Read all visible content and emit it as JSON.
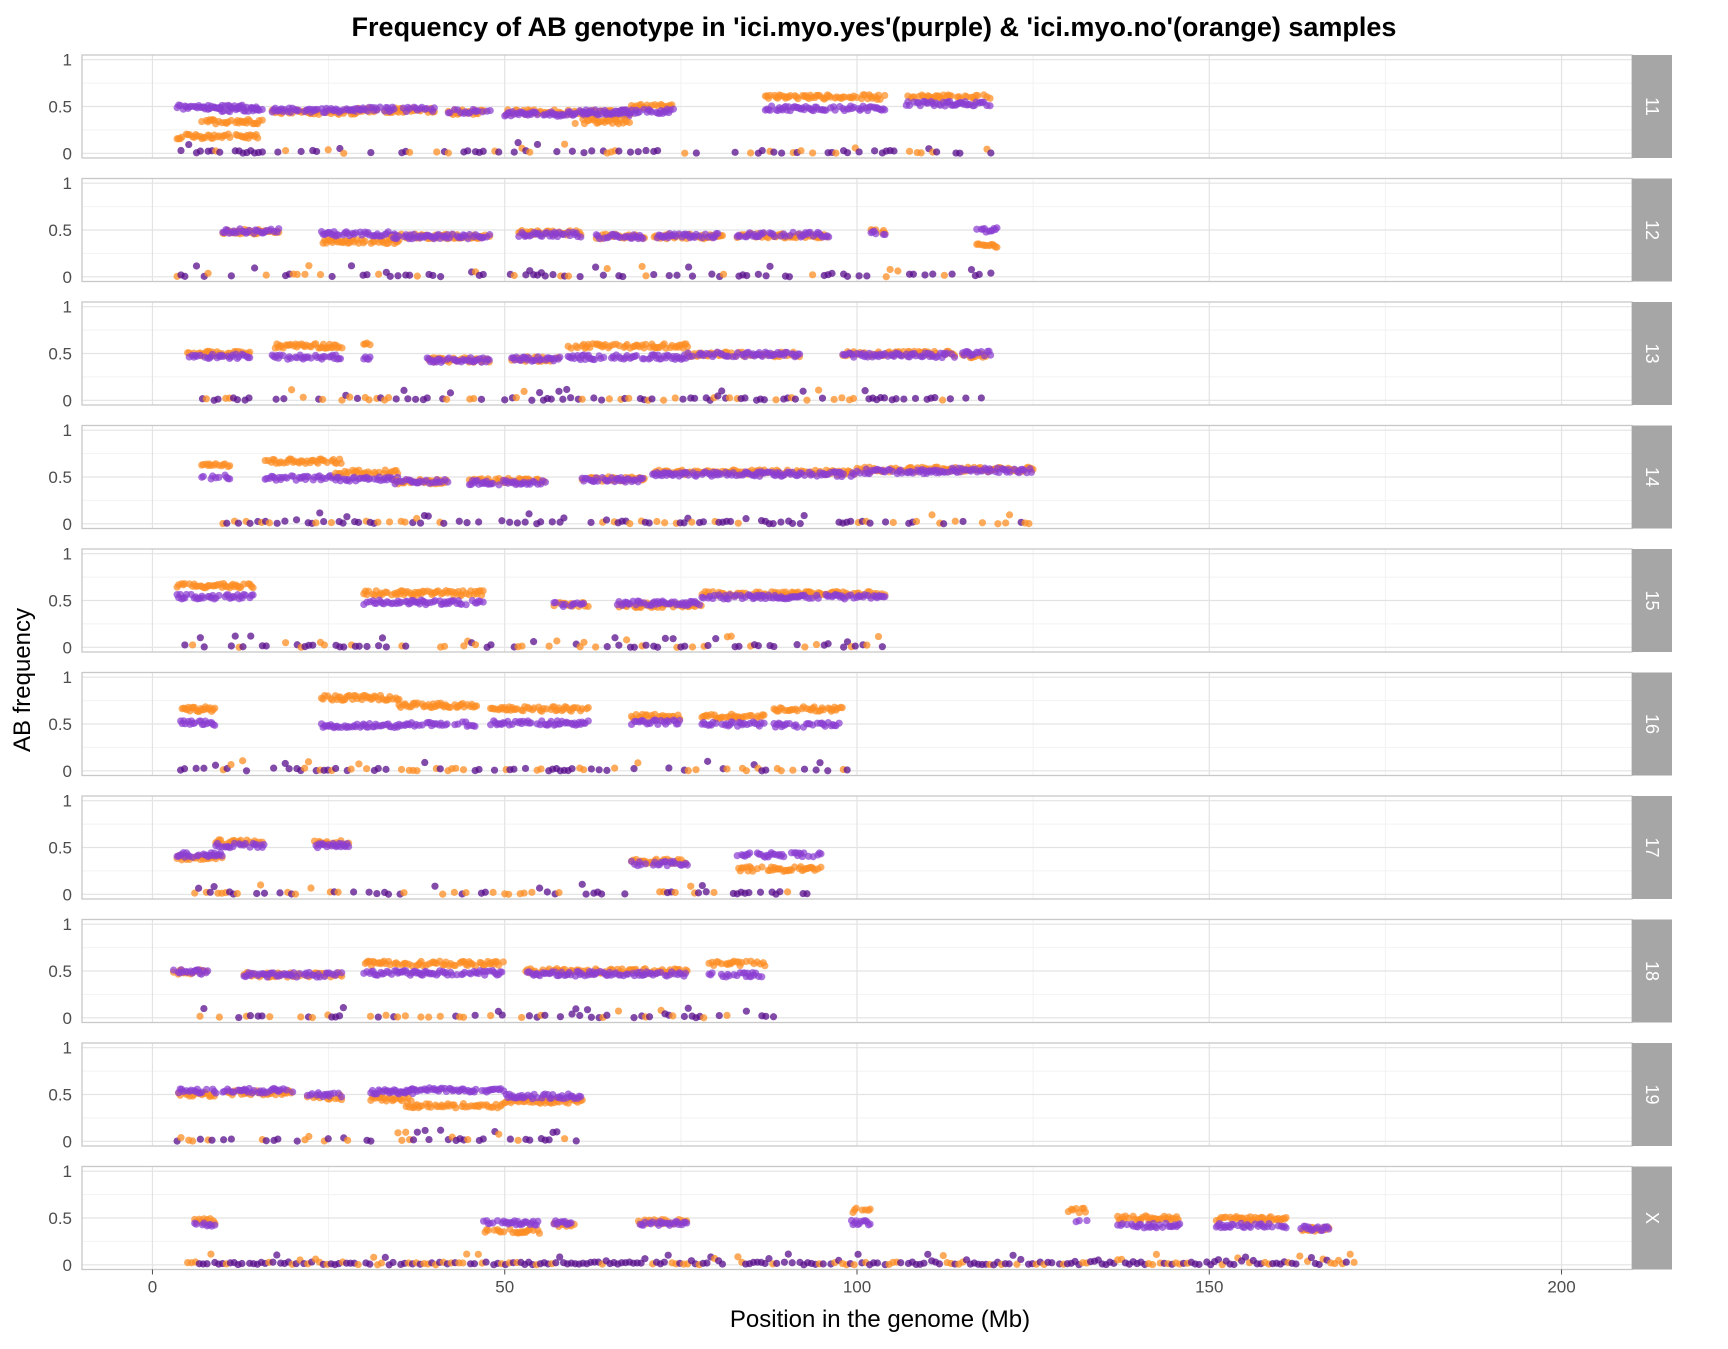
{
  "chart_data": {
    "type": "scatter",
    "title": "Frequency of AB genotype in 'ici.myo.yes'(purple) & 'ici.myo.no'(orange) samples",
    "xlabel": "Position in the genome (Mb)",
    "ylabel": "AB frequency",
    "xlim": [
      -10,
      210
    ],
    "ylim": [
      -0.05,
      1.05
    ],
    "x_ticks": [
      0,
      50,
      100,
      150,
      200
    ],
    "x_tick_labels": [
      "0",
      "50",
      "100",
      "150",
      "200"
    ],
    "y_ticks": [
      0,
      0.5,
      1
    ],
    "y_tick_labels": [
      "0",
      "0.5",
      "1"
    ],
    "grid": true,
    "facet_by": "chromosome",
    "strip_position": "right",
    "colors": {
      "ici.myo.yes": "#8a3fd1",
      "ici.myo.no": "#fd8d24",
      "low_points": "#5a0f8c",
      "panel_border": "#c8c8c8",
      "grid_major": "#e3e3e3",
      "grid_minor": "#f2f2f2",
      "strip": "#a6a6a6"
    },
    "series": [
      {
        "name": "ici.myo.yes",
        "color": "#8a3fd1"
      },
      {
        "name": "ici.myo.no",
        "color": "#fd8d24"
      }
    ],
    "panels": [
      {
        "label": "11",
        "start": 3.5,
        "end": 121,
        "segments": [
          {
            "x": [
              3.5,
              15
            ],
            "yes": 0.49,
            "no": 0.18
          },
          {
            "x": [
              7,
              16
            ],
            "yes": 0.47,
            "no": 0.34
          },
          {
            "x": [
              17,
              29
            ],
            "yes": 0.46,
            "no": 0.44
          },
          {
            "x": [
              29,
              40
            ],
            "yes": 0.47,
            "no": 0.46
          },
          {
            "x": [
              42,
              48
            ],
            "yes": 0.45,
            "no": 0.44
          },
          {
            "x": [
              50,
              68
            ],
            "yes": 0.42,
            "no": 0.44
          },
          {
            "x": [
              60,
              68
            ],
            "yes": 0.44,
            "no": 0.34
          },
          {
            "x": [
              68,
              74
            ],
            "yes": 0.45,
            "no": 0.5
          },
          {
            "x": [
              87,
              104
            ],
            "yes": 0.48,
            "no": 0.6
          },
          {
            "x": [
              107,
              119
            ],
            "yes": 0.53,
            "no": 0.6
          }
        ],
        "low_range": [
          3.5,
          121
        ]
      },
      {
        "label": "12",
        "start": 3.5,
        "end": 120,
        "segments": [
          {
            "x": [
              10,
              18
            ],
            "yes": 0.49,
            "no": 0.48
          },
          {
            "x": [
              24,
              35
            ],
            "yes": 0.46,
            "no": 0.38
          },
          {
            "x": [
              34,
              48
            ],
            "yes": 0.43,
            "no": 0.43
          },
          {
            "x": [
              52,
              61
            ],
            "yes": 0.45,
            "no": 0.47
          },
          {
            "x": [
              63,
              70
            ],
            "yes": 0.43,
            "no": 0.43
          },
          {
            "x": [
              71,
              81
            ],
            "yes": 0.44,
            "no": 0.43
          },
          {
            "x": [
              83,
              96
            ],
            "yes": 0.45,
            "no": 0.44
          },
          {
            "x": [
              102,
              104
            ],
            "yes": 0.47,
            "no": 0.48
          },
          {
            "x": [
              117,
              120
            ],
            "yes": 0.5,
            "no": 0.33
          }
        ],
        "low_range": [
          3.5,
          120
        ]
      },
      {
        "label": "13",
        "start": 5,
        "end": 119,
        "segments": [
          {
            "x": [
              5,
              14
            ],
            "yes": 0.47,
            "no": 0.5
          },
          {
            "x": [
              17,
              27
            ],
            "yes": 0.46,
            "no": 0.58
          },
          {
            "x": [
              30,
              31
            ],
            "yes": 0.44,
            "no": 0.6
          },
          {
            "x": [
              39,
              48
            ],
            "yes": 0.43,
            "no": 0.43
          },
          {
            "x": [
              51,
              58
            ],
            "yes": 0.44,
            "no": 0.44
          },
          {
            "x": [
              59,
              76
            ],
            "yes": 0.46,
            "no": 0.58
          },
          {
            "x": [
              76,
              92
            ],
            "yes": 0.49,
            "no": 0.49
          },
          {
            "x": [
              98,
              114
            ],
            "yes": 0.48,
            "no": 0.5
          },
          {
            "x": [
              115,
              119
            ],
            "yes": 0.5,
            "no": 0.48
          }
        ],
        "low_range": [
          6,
          118
        ]
      },
      {
        "label": "14",
        "start": 7,
        "end": 125,
        "segments": [
          {
            "x": [
              7,
              11
            ],
            "yes": 0.5,
            "no": 0.63
          },
          {
            "x": [
              16,
              27
            ],
            "yes": 0.49,
            "no": 0.67
          },
          {
            "x": [
              26,
              35
            ],
            "yes": 0.48,
            "no": 0.55
          },
          {
            "x": [
              34,
              42
            ],
            "yes": 0.45,
            "no": 0.45
          },
          {
            "x": [
              45,
              56
            ],
            "yes": 0.44,
            "no": 0.46
          },
          {
            "x": [
              61,
              70
            ],
            "yes": 0.47,
            "no": 0.48
          },
          {
            "x": [
              71,
              100
            ],
            "yes": 0.53,
            "no": 0.55
          },
          {
            "x": [
              100,
              112
            ],
            "yes": 0.56,
            "no": 0.58
          },
          {
            "x": [
              112,
              125
            ],
            "yes": 0.57,
            "no": 0.58
          }
        ],
        "low_range": [
          10,
          125
        ]
      },
      {
        "label": "15",
        "start": 3.5,
        "end": 104,
        "segments": [
          {
            "x": [
              3.5,
              14.5
            ],
            "yes": 0.54,
            "no": 0.66
          },
          {
            "x": [
              30,
              47
            ],
            "yes": 0.48,
            "no": 0.58
          },
          {
            "x": [
              57,
              62
            ],
            "yes": 0.46,
            "no": 0.46
          },
          {
            "x": [
              66,
              78
            ],
            "yes": 0.47,
            "no": 0.45
          },
          {
            "x": [
              78,
              104
            ],
            "yes": 0.54,
            "no": 0.57
          }
        ],
        "low_range": [
          3.5,
          104
        ]
      },
      {
        "label": "16",
        "start": 4,
        "end": 98,
        "segments": [
          {
            "x": [
              4,
              9
            ],
            "yes": 0.51,
            "no": 0.66
          },
          {
            "x": [
              24,
              35
            ],
            "yes": 0.48,
            "no": 0.78
          },
          {
            "x": [
              35,
              46
            ],
            "yes": 0.5,
            "no": 0.7
          },
          {
            "x": [
              48,
              62
            ],
            "yes": 0.51,
            "no": 0.66
          },
          {
            "x": [
              68,
              75
            ],
            "yes": 0.52,
            "no": 0.58
          },
          {
            "x": [
              78,
              87
            ],
            "yes": 0.5,
            "no": 0.58
          },
          {
            "x": [
              88,
              98
            ],
            "yes": 0.49,
            "no": 0.66
          }
        ],
        "low_range": [
          4,
          99
        ]
      },
      {
        "label": "17",
        "start": 3.5,
        "end": 95,
        "segments": [
          {
            "x": [
              3.5,
              10
            ],
            "yes": 0.42,
            "no": 0.39
          },
          {
            "x": [
              9,
              16
            ],
            "yes": 0.52,
            "no": 0.56
          },
          {
            "x": [
              23,
              28
            ],
            "yes": 0.52,
            "no": 0.55
          },
          {
            "x": [
              68,
              76
            ],
            "yes": 0.33,
            "no": 0.35
          },
          {
            "x": [
              83,
              95
            ],
            "yes": 0.42,
            "no": 0.27
          }
        ],
        "low_range": [
          6,
          95
        ]
      },
      {
        "label": "18",
        "start": 3,
        "end": 89,
        "segments": [
          {
            "x": [
              3,
              8
            ],
            "yes": 0.49,
            "no": 0.49
          },
          {
            "x": [
              13,
              27
            ],
            "yes": 0.46,
            "no": 0.46
          },
          {
            "x": [
              30,
              50
            ],
            "yes": 0.48,
            "no": 0.58
          },
          {
            "x": [
              53,
              76
            ],
            "yes": 0.47,
            "no": 0.5
          },
          {
            "x": [
              79,
              87
            ],
            "yes": 0.46,
            "no": 0.58
          }
        ],
        "low_range": [
          4,
          89
        ]
      },
      {
        "label": "19",
        "start": 3.5,
        "end": 61,
        "segments": [
          {
            "x": [
              3.5,
              9
            ],
            "yes": 0.54,
            "no": 0.5
          },
          {
            "x": [
              10,
              20
            ],
            "yes": 0.54,
            "no": 0.52
          },
          {
            "x": [
              22,
              27
            ],
            "yes": 0.5,
            "no": 0.47
          },
          {
            "x": [
              31,
              37
            ],
            "yes": 0.53,
            "no": 0.45
          },
          {
            "x": [
              36,
              50
            ],
            "yes": 0.55,
            "no": 0.38
          },
          {
            "x": [
              50,
              61
            ],
            "yes": 0.48,
            "no": 0.43
          }
        ],
        "low_range": [
          3.5,
          61
        ]
      },
      {
        "label": "X",
        "start": 5,
        "end": 171,
        "segments": [
          {
            "x": [
              6,
              9
            ],
            "yes": 0.43,
            "no": 0.47
          },
          {
            "x": [
              47,
              55
            ],
            "yes": 0.45,
            "no": 0.36
          },
          {
            "x": [
              57,
              60
            ],
            "yes": 0.45,
            "no": 0.43
          },
          {
            "x": [
              69,
              76
            ],
            "yes": 0.44,
            "no": 0.46
          },
          {
            "x": [
              99,
              102
            ],
            "yes": 0.45,
            "no": 0.58
          },
          {
            "x": [
              130,
              133
            ],
            "yes": 0.45,
            "no": 0.58
          },
          {
            "x": [
              137,
              146
            ],
            "yes": 0.42,
            "no": 0.5
          },
          {
            "x": [
              151,
              161
            ],
            "yes": 0.42,
            "no": 0.49
          },
          {
            "x": [
              163,
              167
            ],
            "yes": 0.39,
            "no": 0.38
          }
        ],
        "low_range": [
          5,
          171
        ]
      }
    ]
  }
}
